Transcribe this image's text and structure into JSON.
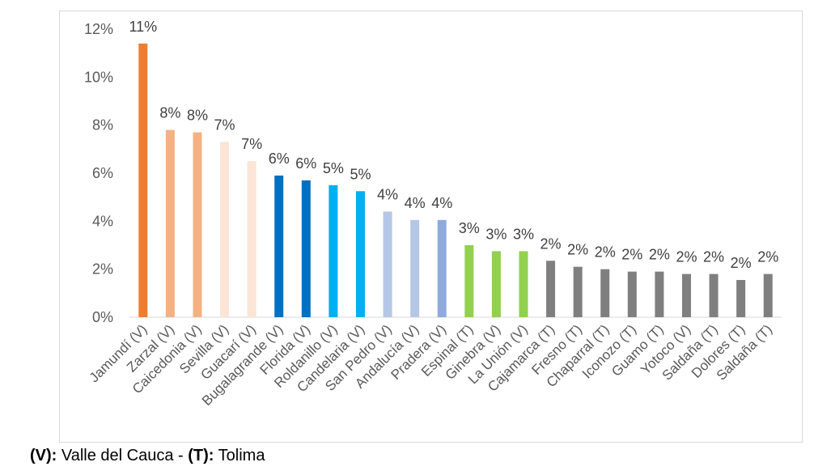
{
  "chart_data": {
    "type": "bar",
    "title": "",
    "xlabel": "",
    "ylabel": "",
    "ylim": [
      0,
      12
    ],
    "yticks": [
      "0%",
      "2%",
      "4%",
      "6%",
      "8%",
      "10%",
      "12%"
    ],
    "grid": false,
    "categories": [
      "Jamundí (V)",
      "Zarzal (V)",
      "Caicedonia (V)",
      "Sevilla (V)",
      "Guacarí (V)",
      "Bugalagrande (V)",
      "Florida (V)",
      "Roldanillo (V)",
      "Candelaria (V)",
      "San Pedro (V)",
      "Andalucía (V)",
      "Pradera (V)",
      "Espinal (T)",
      "Ginebra (V)",
      "La Unión (V)",
      "Cajamarca (T)",
      "Fresno (T)",
      "Chaparral (T)",
      "Iconozo (T)",
      "Guamo (T)",
      "Yotoco (V)",
      "Saldaña (T)",
      "Dolores (T)",
      "Saldaña (T)"
    ],
    "values": [
      11.4,
      7.8,
      7.7,
      7.3,
      6.5,
      5.9,
      5.7,
      5.5,
      5.25,
      4.4,
      4.05,
      4.05,
      3.0,
      2.75,
      2.75,
      2.35,
      2.1,
      2.0,
      1.9,
      1.9,
      1.8,
      1.8,
      1.55,
      1.8
    ],
    "data_labels": [
      "11%",
      "8%",
      "8%",
      "7%",
      "7%",
      "6%",
      "6%",
      "5%",
      "5%",
      "4%",
      "4%",
      "4%",
      "3%",
      "3%",
      "3%",
      "2%",
      "2%",
      "2%",
      "2%",
      "2%",
      "2%",
      "2%",
      "2%",
      "2%"
    ],
    "colors": [
      "#ed7d31",
      "#f4b183",
      "#f4b183",
      "#fbe5d6",
      "#fbe5d6",
      "#0070c0",
      "#0070c0",
      "#00b0f0",
      "#00b0f0",
      "#b4c7e7",
      "#b4c7e7",
      "#8faadc",
      "#92d050",
      "#92d050",
      "#92d050",
      "#7f7f7f",
      "#7f7f7f",
      "#7f7f7f",
      "#7f7f7f",
      "#7f7f7f",
      "#7f7f7f",
      "#7f7f7f",
      "#7f7f7f",
      "#7f7f7f"
    ]
  },
  "footnote": {
    "v_code": "(V):",
    "v_name": " Valle del Cauca - ",
    "t_code": "(T):",
    "t_name": " Tolima"
  }
}
